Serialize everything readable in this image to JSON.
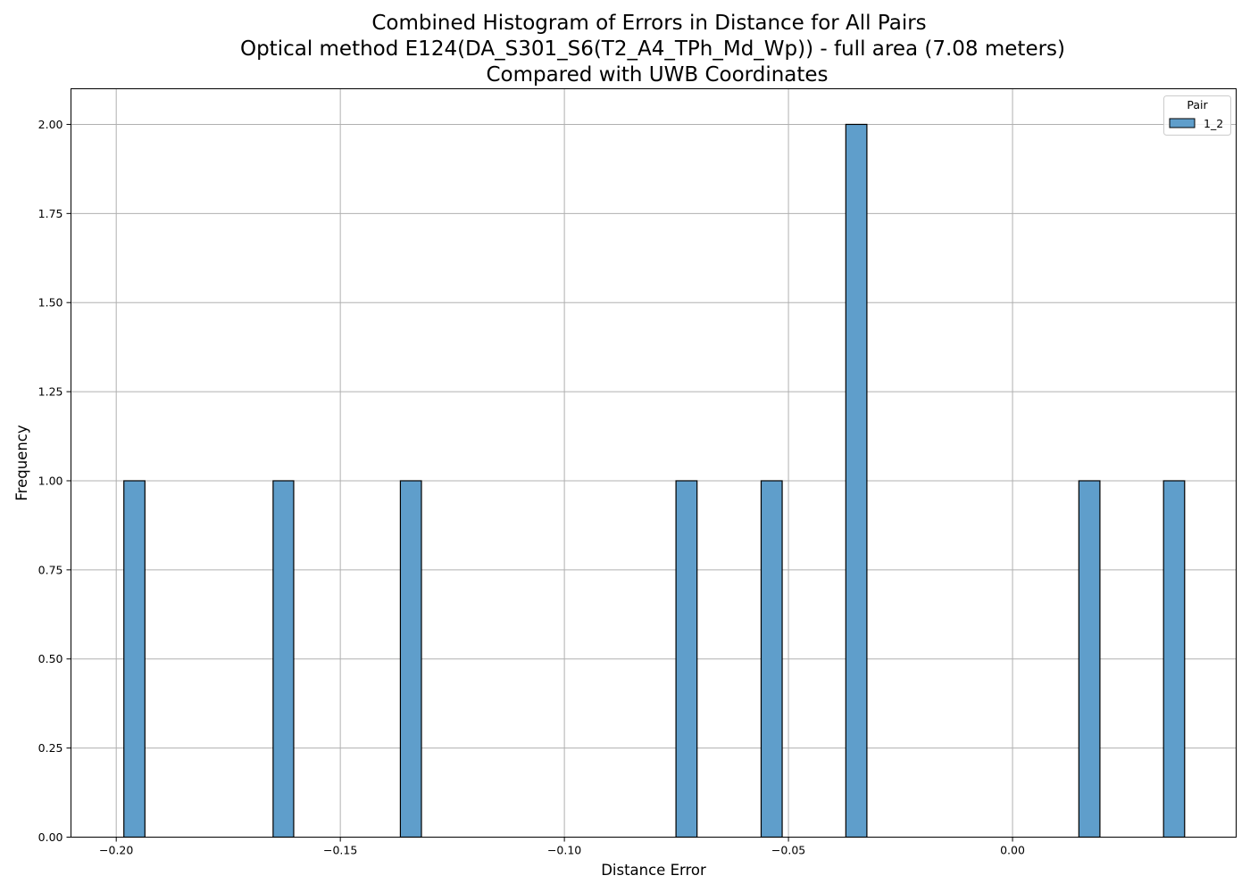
{
  "chart_data": {
    "type": "histogram",
    "title_lines": [
      "Combined Histogram of Errors in Distance for All Pairs",
      "Optical method E124(DA_S301_S6(T2_A4_TPh_Md_Wp)) - full area (7.08 meters)",
      "Compared with UWB Coordinates"
    ],
    "xlabel": "Distance Error",
    "ylabel": "Frequency",
    "xlim": [
      -0.2101,
      0.0499
    ],
    "ylim": [
      0,
      2.1
    ],
    "grid": true,
    "xticks": [
      {
        "value": -0.2,
        "label": "−0.20"
      },
      {
        "value": -0.15,
        "label": "−0.15"
      },
      {
        "value": -0.1,
        "label": "−0.10"
      },
      {
        "value": -0.05,
        "label": "−0.05"
      },
      {
        "value": 0.0,
        "label": "0.00"
      }
    ],
    "yticks": [
      {
        "value": 0.0,
        "label": "0.00"
      },
      {
        "value": 0.25,
        "label": "0.25"
      },
      {
        "value": 0.5,
        "label": "0.50"
      },
      {
        "value": 0.75,
        "label": "0.75"
      },
      {
        "value": 1.0,
        "label": "1.00"
      },
      {
        "value": 1.25,
        "label": "1.25"
      },
      {
        "value": 1.5,
        "label": "1.50"
      },
      {
        "value": 1.75,
        "label": "1.75"
      },
      {
        "value": 2.0,
        "label": "2.00"
      }
    ],
    "legend": {
      "title": "Pair",
      "position": "top-right",
      "entries": [
        "1_2"
      ]
    },
    "series": [
      {
        "name": "1_2",
        "color": "#5f9ecb",
        "edge_color": "#000000",
        "bins": [
          {
            "x0": -0.1983,
            "x1": -0.1936,
            "count": 1
          },
          {
            "x0": -0.165,
            "x1": -0.1604,
            "count": 1
          },
          {
            "x0": -0.1366,
            "x1": -0.1319,
            "count": 1
          },
          {
            "x0": -0.0751,
            "x1": -0.0704,
            "count": 1
          },
          {
            "x0": -0.0561,
            "x1": -0.0514,
            "count": 1
          },
          {
            "x0": -0.0372,
            "x1": -0.0325,
            "count": 2
          },
          {
            "x0": 0.0148,
            "x1": 0.0195,
            "count": 1
          },
          {
            "x0": 0.0337,
            "x1": 0.0384,
            "count": 1
          }
        ]
      }
    ]
  }
}
